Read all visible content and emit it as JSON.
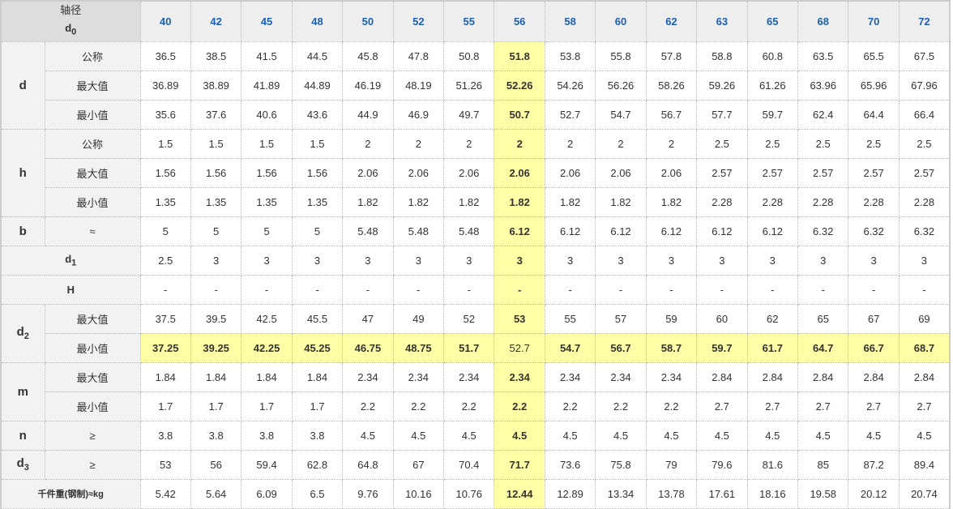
{
  "header": {
    "label": "轴径",
    "symbol": "d",
    "symbol_sub": "0",
    "columns": [
      "40",
      "42",
      "45",
      "48",
      "50",
      "52",
      "55",
      "56",
      "58",
      "60",
      "62",
      "63",
      "65",
      "68",
      "70",
      "72"
    ]
  },
  "highlight_column": "56",
  "highlight_color": "#ffffa8",
  "rows": [
    {
      "group": "d",
      "group_span": 3,
      "sub": "公称",
      "values": [
        "36.5",
        "38.5",
        "41.5",
        "44.5",
        "45.8",
        "47.8",
        "50.8",
        "51.8",
        "53.8",
        "55.8",
        "57.8",
        "58.8",
        "60.8",
        "63.5",
        "65.5",
        "67.5"
      ]
    },
    {
      "sub": "最大值",
      "values": [
        "36.89",
        "38.89",
        "41.89",
        "44.89",
        "46.19",
        "48.19",
        "51.26",
        "52.26",
        "54.26",
        "56.26",
        "58.26",
        "59.26",
        "61.26",
        "63.96",
        "65.96",
        "67.96"
      ]
    },
    {
      "sub": "最小值",
      "values": [
        "35.6",
        "37.6",
        "40.6",
        "43.6",
        "44.9",
        "46.9",
        "49.7",
        "50.7",
        "52.7",
        "54.7",
        "56.7",
        "57.7",
        "59.7",
        "62.4",
        "64.4",
        "66.4"
      ]
    },
    {
      "group": "h",
      "group_span": 3,
      "sub": "公称",
      "values": [
        "1.5",
        "1.5",
        "1.5",
        "1.5",
        "2",
        "2",
        "2",
        "2",
        "2",
        "2",
        "2",
        "2.5",
        "2.5",
        "2.5",
        "2.5",
        "2.5"
      ]
    },
    {
      "sub": "最大值",
      "values": [
        "1.56",
        "1.56",
        "1.56",
        "1.56",
        "2.06",
        "2.06",
        "2.06",
        "2.06",
        "2.06",
        "2.06",
        "2.06",
        "2.57",
        "2.57",
        "2.57",
        "2.57",
        "2.57"
      ]
    },
    {
      "sub": "最小值",
      "values": [
        "1.35",
        "1.35",
        "1.35",
        "1.35",
        "1.82",
        "1.82",
        "1.82",
        "1.82",
        "1.82",
        "1.82",
        "1.82",
        "2.28",
        "2.28",
        "2.28",
        "2.28",
        "2.28"
      ]
    },
    {
      "group": "b",
      "group_span": 1,
      "sub": "≈",
      "values": [
        "5",
        "5",
        "5",
        "5",
        "5.48",
        "5.48",
        "5.48",
        "6.12",
        "6.12",
        "6.12",
        "6.12",
        "6.12",
        "6.12",
        "6.32",
        "6.32",
        "6.32"
      ]
    },
    {
      "merged": "d",
      "merged_sub": "1",
      "values": [
        "2.5",
        "3",
        "3",
        "3",
        "3",
        "3",
        "3",
        "3",
        "3",
        "3",
        "3",
        "3",
        "3",
        "3",
        "3",
        "3"
      ]
    },
    {
      "merged": "H",
      "values": [
        "-",
        "-",
        "-",
        "-",
        "-",
        "-",
        "-",
        "-",
        "-",
        "-",
        "-",
        "-",
        "-",
        "-",
        "-",
        "-"
      ]
    },
    {
      "group": "d",
      "group_sub": "2",
      "group_span": 2,
      "sub": "最大值",
      "values": [
        "37.5",
        "39.5",
        "42.5",
        "45.5",
        "47",
        "49",
        "52",
        "53",
        "55",
        "57",
        "59",
        "60",
        "62",
        "65",
        "67",
        "69"
      ]
    },
    {
      "sub": "最小值",
      "highlight": true,
      "values": [
        "37.25",
        "39.25",
        "42.25",
        "45.25",
        "46.75",
        "48.75",
        "51.7",
        "52.7",
        "54.7",
        "56.7",
        "58.7",
        "59.7",
        "61.7",
        "64.7",
        "66.7",
        "68.7"
      ]
    },
    {
      "group": "m",
      "group_span": 2,
      "sub": "最大值",
      "values": [
        "1.84",
        "1.84",
        "1.84",
        "1.84",
        "2.34",
        "2.34",
        "2.34",
        "2.34",
        "2.34",
        "2.34",
        "2.34",
        "2.84",
        "2.84",
        "2.84",
        "2.84",
        "2.84"
      ]
    },
    {
      "sub": "最小值",
      "values": [
        "1.7",
        "1.7",
        "1.7",
        "1.7",
        "2.2",
        "2.2",
        "2.2",
        "2.2",
        "2.2",
        "2.2",
        "2.2",
        "2.7",
        "2.7",
        "2.7",
        "2.7",
        "2.7"
      ]
    },
    {
      "group": "n",
      "group_span": 1,
      "sub": "≥",
      "values": [
        "3.8",
        "3.8",
        "3.8",
        "3.8",
        "4.5",
        "4.5",
        "4.5",
        "4.5",
        "4.5",
        "4.5",
        "4.5",
        "4.5",
        "4.5",
        "4.5",
        "4.5",
        "4.5"
      ]
    },
    {
      "group": "d",
      "group_sub": "3",
      "group_span": 1,
      "sub": "≥",
      "values": [
        "53",
        "56",
        "59.4",
        "62.8",
        "64.8",
        "67",
        "70.4",
        "71.7",
        "73.6",
        "75.8",
        "79",
        "79.6",
        "81.6",
        "85",
        "87.2",
        "89.4"
      ]
    },
    {
      "merged": "千件重(钢制)≈kg",
      "merged_small": true,
      "values": [
        "5.42",
        "5.64",
        "6.09",
        "6.5",
        "9.76",
        "10.16",
        "10.76",
        "12.44",
        "12.89",
        "13.34",
        "13.78",
        "17.61",
        "18.16",
        "19.58",
        "20.12",
        "20.74"
      ]
    }
  ]
}
